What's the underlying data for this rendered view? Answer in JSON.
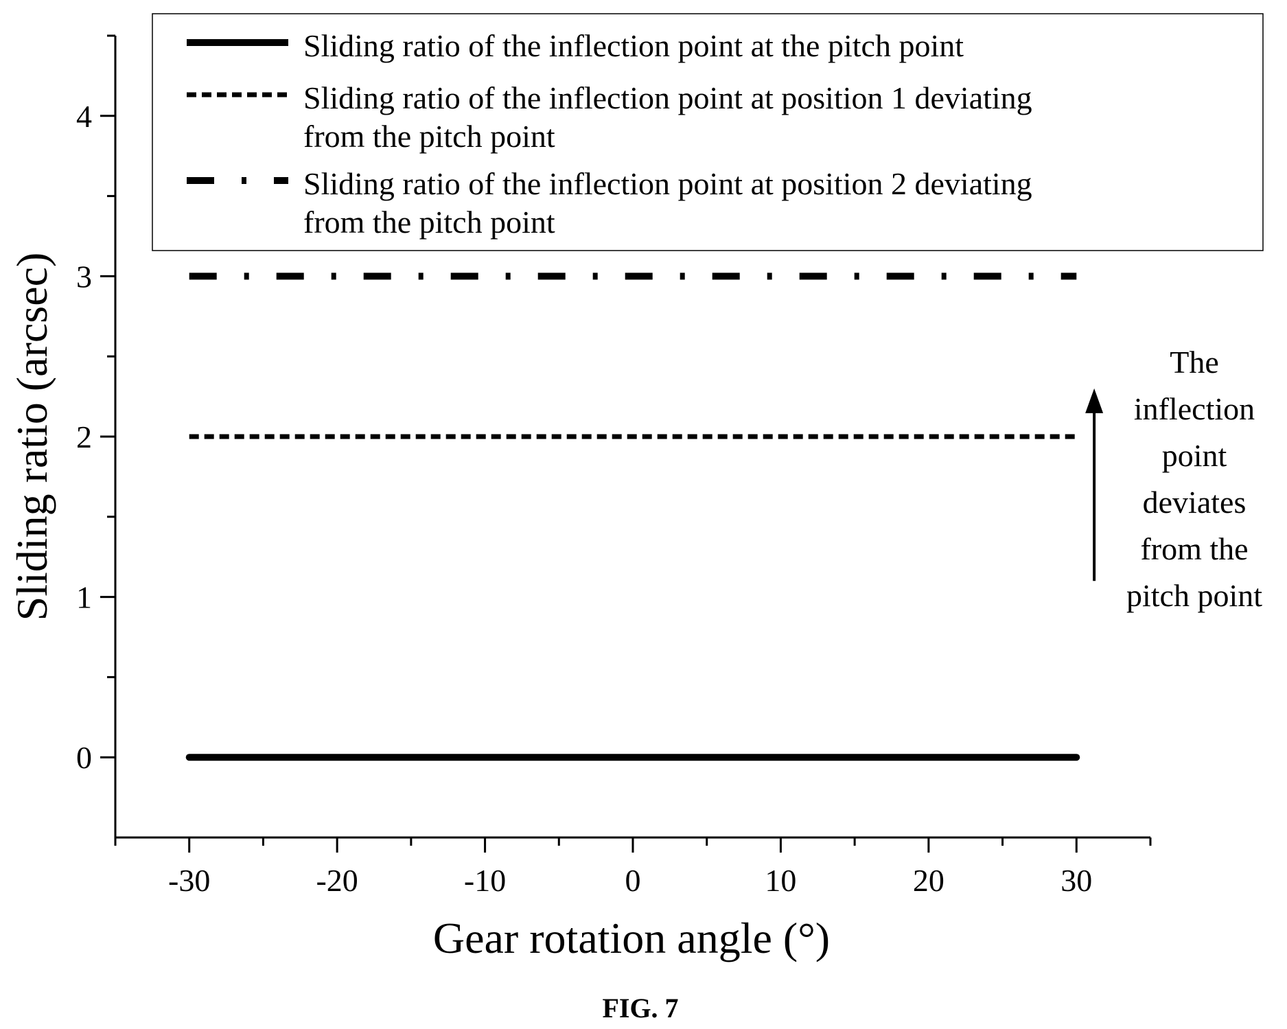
{
  "chart_data": {
    "type": "line",
    "title": "",
    "xlabel": "Gear rotation angle (°)",
    "ylabel": "Sliding ratio (arcsec)",
    "xlim": [
      -35,
      35
    ],
    "ylim": [
      -0.5,
      4.5
    ],
    "xticks": [
      -30,
      -20,
      -10,
      0,
      10,
      20,
      30
    ],
    "xtick_labels": [
      "-30",
      "-20",
      "-10",
      "0",
      "10",
      "20",
      "30"
    ],
    "yticks": [
      0,
      1,
      2,
      3,
      4
    ],
    "ytick_labels": [
      "0",
      "1",
      "2",
      "3",
      "4"
    ],
    "grid": false,
    "legend_position": "top",
    "series": [
      {
        "name": "Sliding ratio of the inflection point at the pitch point",
        "name_lines": [
          "Sliding ratio of the inflection point at the pitch point"
        ],
        "style": "solid",
        "color": "#000000",
        "x": [
          -30,
          30
        ],
        "y": [
          0,
          0
        ]
      },
      {
        "name": "Sliding ratio of the inflection point at position 1 deviating from the pitch point",
        "name_lines": [
          "Sliding ratio of the inflection point at position 1 deviating",
          "from the pitch point"
        ],
        "style": "dashed",
        "color": "#000000",
        "x": [
          -30,
          30
        ],
        "y": [
          2,
          2
        ]
      },
      {
        "name": "Sliding ratio of the inflection point at position 2 deviating from the pitch point",
        "name_lines": [
          "Sliding ratio of the inflection point at position 2 deviating",
          "from the pitch point"
        ],
        "style": "dash-dot",
        "color": "#000000",
        "x": [
          -30,
          30
        ],
        "y": [
          3,
          3
        ]
      }
    ],
    "annotation": {
      "lines": [
        "The",
        "inflection",
        "point",
        "deviates",
        "from the",
        "pitch point"
      ],
      "arrow_x": 31.2,
      "arrow_from_y": 1.1,
      "arrow_to_y": 2.3
    }
  },
  "figure_caption": "FIG. 7"
}
